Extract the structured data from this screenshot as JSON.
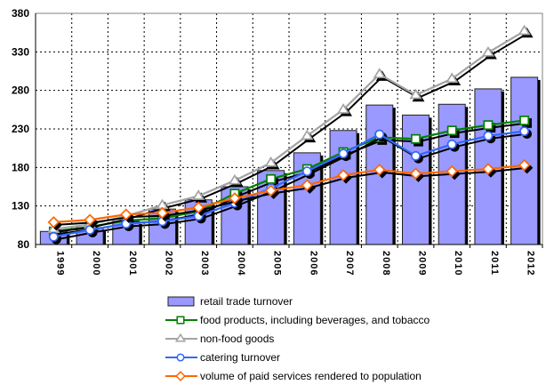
{
  "chart_data": {
    "type": "combo-bar-line",
    "title": "",
    "categories": [
      "1999",
      "2000",
      "2001",
      "2002",
      "2003",
      "2004",
      "2005",
      "2006",
      "2007",
      "2008",
      "2009",
      "2010",
      "2011",
      "2012"
    ],
    "series": [
      {
        "name": "retail trade turnover",
        "kind": "bar",
        "marker": "rect",
        "color": "#9999FF",
        "values": [
          97,
          102,
          110,
          126,
          138,
          155,
          176,
          199,
          228,
          261,
          248,
          262,
          282,
          297
        ]
      },
      {
        "name": "food products, including beverages, and tobacco",
        "kind": "line",
        "marker": "square",
        "color": "#008000",
        "values": [
          97,
          103,
          111,
          114,
          123,
          146,
          165,
          178,
          200,
          219,
          217,
          228,
          235,
          241
        ]
      },
      {
        "name": "non-food goods",
        "kind": "line",
        "marker": "triangle",
        "color": "#A3A3A3",
        "values": [
          100,
          106,
          117,
          131,
          143,
          163,
          186,
          221,
          255,
          301,
          274,
          295,
          329,
          357
        ]
      },
      {
        "name": "catering turnover",
        "kind": "line",
        "marker": "circle",
        "color": "#3366FF",
        "values": [
          90,
          99,
          107,
          110,
          117,
          134,
          153,
          175,
          198,
          223,
          195,
          210,
          221,
          227
        ]
      },
      {
        "name": "volume of paid services rendered to population",
        "kind": "line",
        "marker": "diamond",
        "color": "#FF6600",
        "values": [
          109,
          112,
          119,
          121,
          128,
          140,
          150,
          157,
          170,
          177,
          172,
          175,
          178,
          183
        ]
      }
    ],
    "ylim": [
      80,
      380
    ],
    "yticks": [
      80,
      130,
      180,
      230,
      280,
      330,
      380
    ],
    "grid": true,
    "legend_position": "bottom-left",
    "marker_fill": "#FFFFFF",
    "shadow_color": "#000000",
    "gridline_color": "#000000",
    "axis_color": "#000000",
    "plot_border_color": "#808080"
  }
}
